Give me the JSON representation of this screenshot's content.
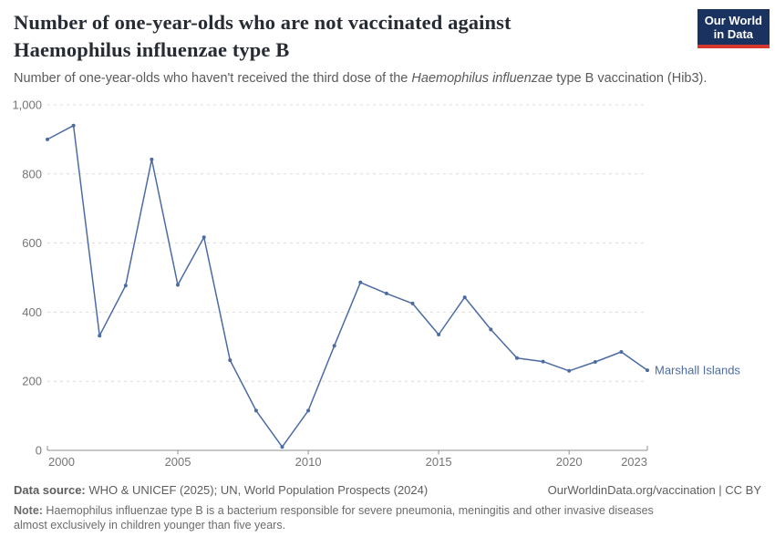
{
  "header": {
    "title": "Number of one-year-olds who are not vaccinated against Haemophilus influenzae type B",
    "subtitle_prefix": "Number of one-year-olds who haven't received the third dose of the ",
    "subtitle_italic": "Haemophilus influenzae",
    "subtitle_suffix": " type B vaccination (Hib3).",
    "logo": {
      "line1": "Our World",
      "line2": "in Data"
    }
  },
  "chart_data": {
    "type": "line",
    "title": "Number of one-year-olds who are not vaccinated against Haemophilus influenzae type B",
    "x": [
      2000,
      2001,
      2002,
      2003,
      2004,
      2005,
      2006,
      2007,
      2008,
      2009,
      2010,
      2011,
      2012,
      2013,
      2014,
      2015,
      2016,
      2017,
      2018,
      2019,
      2020,
      2021,
      2022,
      2023
    ],
    "series": [
      {
        "name": "Marshall Islands",
        "color": "#4c6ba3",
        "values": [
          900,
          940,
          332,
          477,
          842,
          479,
          617,
          261,
          115,
          10,
          115,
          303,
          486,
          454,
          425,
          335,
          443,
          350,
          267,
          257,
          230,
          256,
          285,
          232
        ]
      }
    ],
    "xlabel": "",
    "ylabel": "",
    "ylim": [
      0,
      1000
    ],
    "yticks": [
      0,
      200,
      400,
      600,
      800,
      1000
    ],
    "ytick_labels": [
      "0",
      "200",
      "400",
      "600",
      "800",
      "1,000"
    ],
    "xticks": [
      2000,
      2005,
      2010,
      2015,
      2020,
      2023
    ],
    "grid": "horizontal-dashed",
    "legend_position": "end-of-line"
  },
  "footer": {
    "datasource_label": "Data source:",
    "datasource_text": " WHO & UNICEF (2025); UN, World Population Prospects (2024)",
    "link": "OurWorldinData.org/vaccination | CC BY",
    "note_label": "Note:",
    "note_text": " Haemophilus influenzae type B is a bacterium responsible for severe pneumonia, meningitis and other invasive diseases almost exclusively in children younger than five years."
  },
  "colors": {
    "accent": "#4c6ba3",
    "logo_bg": "#1a3260",
    "logo_red": "#d7382e",
    "grid": "#dcdcdc",
    "axis": "#8f8f8f",
    "tick_text": "#757575"
  }
}
